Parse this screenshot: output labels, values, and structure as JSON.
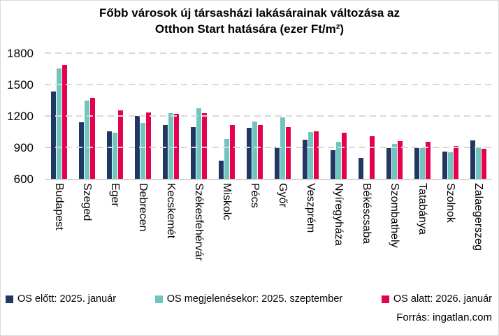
{
  "source": "Forrás: ingatlan.com",
  "chart_data": {
    "type": "bar",
    "title": "Főbb városok új társasházi lakásárainak változása az Otthon Start hatására (ezer Ft/m²)",
    "title_lines": [
      "Főbb városok új társasházi lakásárainak változása az",
      "Otthon Start hatására (ezer Ft/m²)"
    ],
    "ylim": [
      600,
      1800
    ],
    "yticks": [
      600,
      900,
      1200,
      1500,
      1800
    ],
    "grid": "horizontal-dashed",
    "legend_position": "bottom",
    "categories": [
      "Budapest",
      "Szeged",
      "Eger",
      "Debrecen",
      "Kecskemét",
      "Székesfehérvár",
      "Miskolc",
      "Pécs",
      "Győr",
      "Veszprém",
      "Nyíregyháza",
      "Békéscsaba",
      "Szombathely",
      "Tatabánya",
      "Szolnok",
      "Zalaegerszeg"
    ],
    "series": [
      {
        "name": "OS előtt: 2025. január",
        "color": "#1f3864",
        "values": [
          1430,
          1140,
          1055,
          1200,
          1110,
          1095,
          775,
          1085,
          905,
          970,
          875,
          800,
          895,
          890,
          860,
          965
        ]
      },
      {
        "name": "OS megjelenésekor: 2025. szeptember",
        "color": "#70c5bf",
        "values": [
          1655,
          1345,
          1040,
          1130,
          1225,
          1270,
          980,
          1145,
          1185,
          1045,
          955,
          null,
          935,
          895,
          855,
          895
        ]
      },
      {
        "name": "OS alatt: 2026. január",
        "color": "#e4024f",
        "values": [
          1685,
          1375,
          1255,
          1230,
          1220,
          1225,
          1115,
          1110,
          1095,
          1055,
          1040,
          1005,
          960,
          955,
          910,
          885
        ]
      }
    ]
  }
}
